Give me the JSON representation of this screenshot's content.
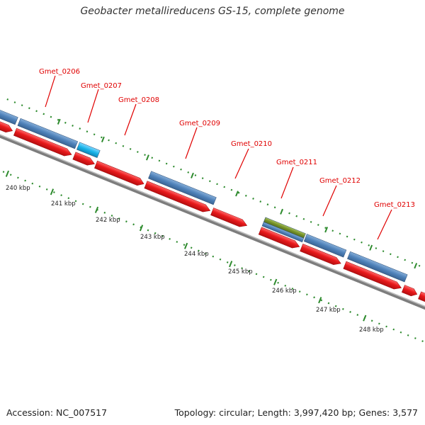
{
  "title": "Geobacter metallireducens GS-15, complete genome",
  "footer": {
    "accession": "Accession: NC_007517",
    "stats": "Topology: circular; Length: 3,997,420 bp; Genes: 3,577"
  },
  "colors": {
    "cds": "#e8191b",
    "gene": "#4e81b9",
    "highlight": "#19b4e9",
    "misc": "#76922a",
    "backbone": "#8a8a8a",
    "ticks": "#2e8b2e",
    "label": "#e00000"
  },
  "gene_labels": [
    "Gmet_0206",
    "Gmet_0207",
    "Gmet_0208",
    "Gmet_0209",
    "Gmet_0210",
    "Gmet_0211",
    "Gmet_0212",
    "Gmet_0213"
  ],
  "kbp_labels": [
    "240 kbp",
    "241 kbp",
    "242 kbp",
    "243 kbp",
    "244 kbp",
    "245 kbp",
    "246 kbp",
    "247 kbp",
    "248 kbp"
  ]
}
